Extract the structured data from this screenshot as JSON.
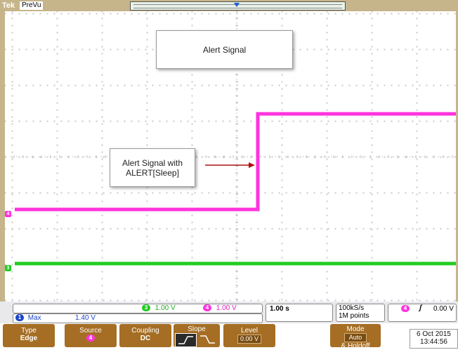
{
  "header": {
    "logo_text": "Tek",
    "mode_label": "PreVu"
  },
  "annotations": {
    "alert_signal": "Alert Signal",
    "alert_sleep_line1": "Alert Signal with",
    "alert_sleep_line2": "ALERT[Sleep]"
  },
  "channels": {
    "ch4_marker": "4",
    "ch3_marker": "3",
    "ch4_color": "#ff33dd",
    "ch3_color": "#22cc22",
    "ch1_color": "#1a45c8"
  },
  "readout": {
    "ch3_badge": "3",
    "ch3_scale": "1.00 V",
    "ch4_badge": "4",
    "ch4_scale": "1.00 V",
    "ch1_badge": "1",
    "measure_label": "Max",
    "measure_value": "1.40 V",
    "timebase": "1.00 s",
    "sample_rate": "100kS/s",
    "record_length": "1M points",
    "trig_badge": "4",
    "trig_slope_symbol": "ʃ",
    "trig_level": "0.00 V"
  },
  "menu": {
    "type_label": "Type",
    "type_value": "Edge",
    "source_label": "Source",
    "source_value": "4",
    "coupling_label": "Coupling",
    "coupling_value": "DC",
    "slope_label": "Slope",
    "level_label": "Level",
    "level_value": "0.00 V",
    "mode_label": "Mode",
    "mode_value": "Auto",
    "mode_suffix": "& Holdoff"
  },
  "datetime": {
    "date": "6 Oct  2015",
    "time": "13:44:56"
  }
}
